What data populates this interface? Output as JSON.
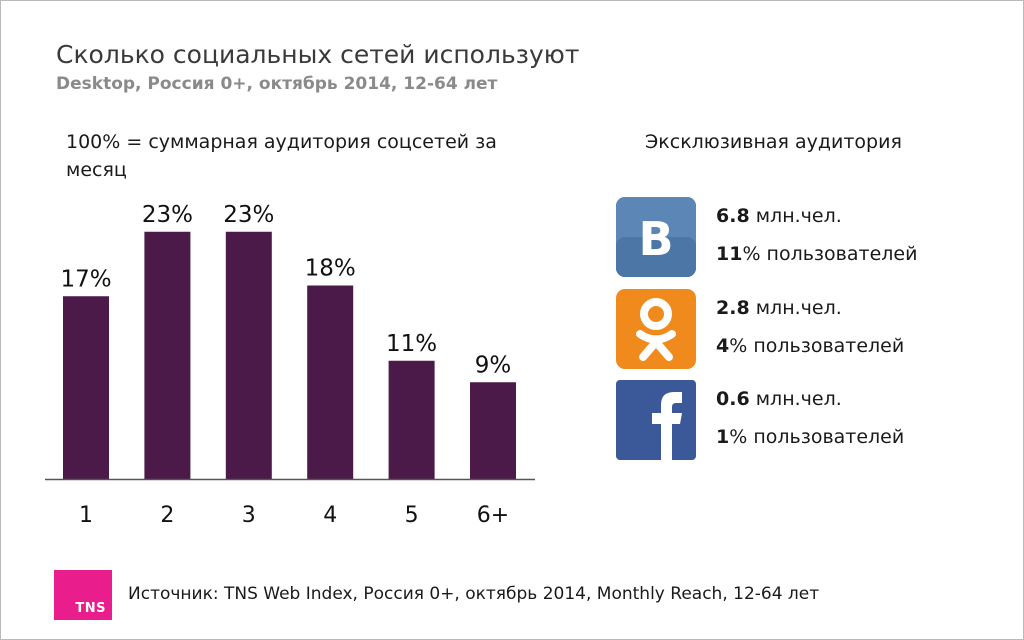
{
  "header": {
    "title": "Сколько социальных сетей используют",
    "subtitle": "Desktop, Россия 0+, октябрь 2014, 12-64 лет"
  },
  "note": "100% = суммарная аудитория соцсетей за месяц",
  "chart_data": {
    "type": "bar",
    "title": "Сколько социальных сетей используют",
    "subtitle": "Desktop, Россия 0+, октябрь 2014, 12-64 лет",
    "categories": [
      "1",
      "2",
      "3",
      "4",
      "5",
      "6+"
    ],
    "values": [
      17,
      23,
      23,
      18,
      11,
      9
    ],
    "data_labels": [
      "17%",
      "23%",
      "23%",
      "18%",
      "11%",
      "9%"
    ],
    "xlabel": "",
    "ylabel": "",
    "ylim": [
      0,
      25
    ],
    "grid": false,
    "bar_color": "#4b1a48"
  },
  "exclusive": {
    "title": "Эксклюзивная аудитория",
    "networks": [
      {
        "name": "vk",
        "icon": "vk-logo-icon",
        "color": "#4c76a5",
        "value": "6.8",
        "unit": " млн.чел.",
        "pct": "11",
        "pct_suffix": "% пользователей"
      },
      {
        "name": "ok",
        "icon": "odnoklassniki-logo-icon",
        "color": "#f08a1c",
        "value": "2.8",
        "unit": " млн.чел.",
        "pct": "4",
        "pct_suffix": "% пользователей"
      },
      {
        "name": "fb",
        "icon": "facebook-logo-icon",
        "color": "#3b5998",
        "value": "0.6",
        "unit": " млн.чел.",
        "pct": "1",
        "pct_suffix": "% пользователей"
      }
    ]
  },
  "footer": {
    "logo_text": "TNS",
    "logo_color": "#ea1d8c",
    "source": "Источник: TNS Web Index, Россия 0+, октябрь 2014, Monthly Reach, 12-64 лет"
  }
}
